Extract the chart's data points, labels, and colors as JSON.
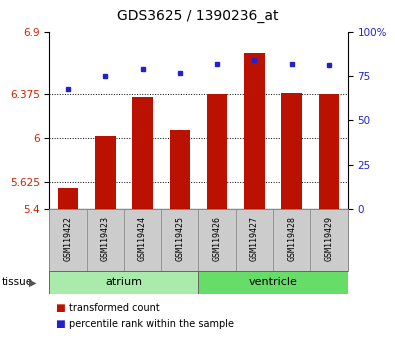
{
  "title": "GDS3625 / 1390236_at",
  "samples": [
    "GSM119422",
    "GSM119423",
    "GSM119424",
    "GSM119425",
    "GSM119426",
    "GSM119427",
    "GSM119428",
    "GSM119429"
  ],
  "red_values": [
    5.58,
    6.02,
    6.35,
    6.07,
    6.37,
    6.72,
    6.38,
    6.375
  ],
  "blue_values": [
    68,
    75,
    79,
    77,
    82,
    84,
    82,
    81
  ],
  "groups": [
    {
      "label": "atrium",
      "indices": [
        0,
        1,
        2,
        3
      ],
      "color": "#aaeaaa"
    },
    {
      "label": "ventricle",
      "indices": [
        4,
        5,
        6,
        7
      ],
      "color": "#66dd66"
    }
  ],
  "ylim_left": [
    5.4,
    6.9
  ],
  "ylim_right": [
    0,
    100
  ],
  "yticks_left": [
    5.4,
    5.625,
    6.0,
    6.375,
    6.9
  ],
  "ytick_labels_left": [
    "5.4",
    "5.625",
    "6",
    "6.375",
    "6.9"
  ],
  "yticks_right": [
    0,
    25,
    50,
    75,
    100
  ],
  "ytick_labels_right": [
    "0",
    "25",
    "50",
    "75",
    "100%"
  ],
  "dotted_lines": [
    5.625,
    6.0,
    6.375
  ],
  "bar_color": "#bb1100",
  "dot_color": "#2222cc",
  "bar_width": 0.55,
  "bar_bottom": 5.4,
  "legend_items": [
    {
      "color": "#bb1100",
      "label": "transformed count"
    },
    {
      "color": "#2222cc",
      "label": "percentile rank within the sample"
    }
  ],
  "tissue_label": "tissue",
  "tick_label_color_left": "#cc2200",
  "tick_label_color_right": "#2222cc",
  "sample_box_color": "#cccccc",
  "title_fontsize": 10,
  "tick_fontsize": 7.5,
  "sample_fontsize": 6,
  "legend_fontsize": 7
}
